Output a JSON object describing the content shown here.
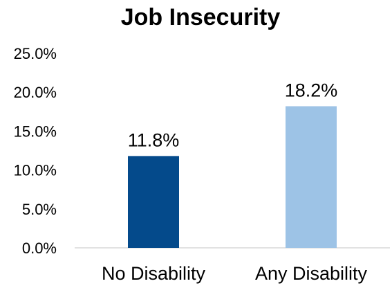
{
  "chart_data": {
    "type": "bar",
    "title": "Job Insecurity",
    "xlabel": "",
    "ylabel": "",
    "categories": [
      "No Disability",
      "Any Disability"
    ],
    "values": [
      11.8,
      18.2
    ],
    "data_labels": [
      "11.8%",
      "18.2%"
    ],
    "colors": [
      "#044a8b",
      "#9dc3e6"
    ],
    "ylim": [
      0,
      25
    ],
    "yticks": [
      0,
      5,
      10,
      15,
      20,
      25
    ],
    "ytick_labels": [
      "0.0%",
      "5.0%",
      "10.0%",
      "15.0%",
      "20.0%",
      "25.0%"
    ],
    "grid": false,
    "legend": "none"
  }
}
